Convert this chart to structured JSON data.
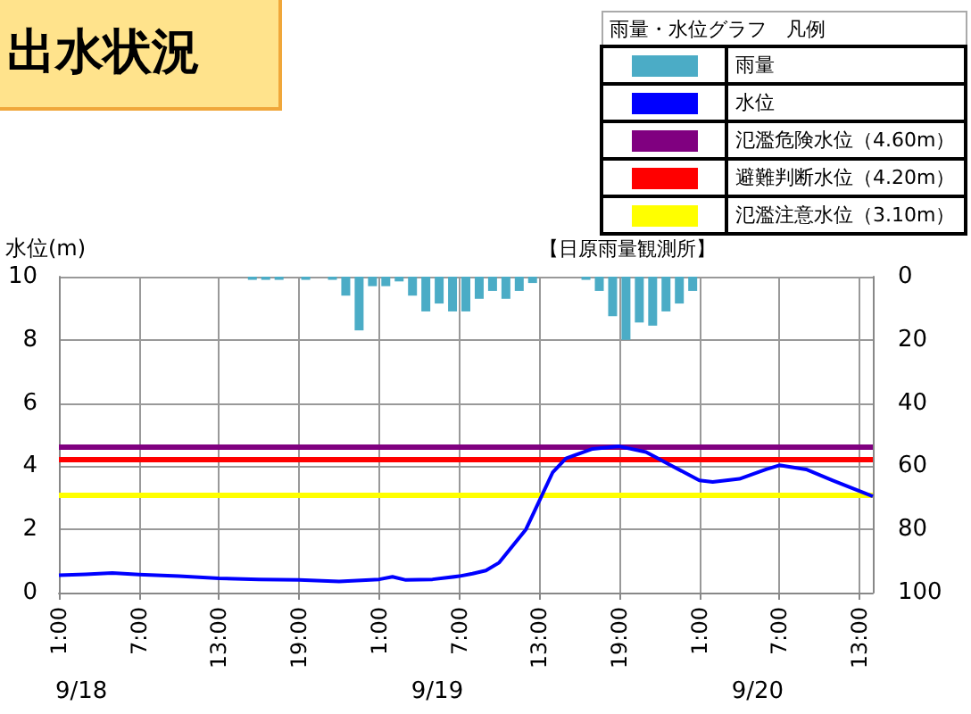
{
  "chart_data": {
    "type": "line",
    "title": "出水状況",
    "ylabel": "水位(m)",
    "legend_title": "雨量・水位グラフ　凡例",
    "annotations": [
      "【日原雨量観測所】",
      "9/18",
      "9/19",
      "9/20"
    ],
    "xlim": [
      "--09-18T01:00",
      "--09-20T14:00"
    ],
    "xticks": [
      {
        "value": "--09-18T01:00",
        "label": "1:00"
      },
      {
        "value": "--09-18T07:00",
        "label": "7:00"
      },
      {
        "value": "--09-18T13:00",
        "label": "13:00"
      },
      {
        "value": "--09-18T19:00",
        "label": "19:00"
      },
      {
        "value": "--09-19T01:00",
        "label": "1:00"
      },
      {
        "value": "--09-19T07:00",
        "label": "7:00"
      },
      {
        "value": "--09-19T13:00",
        "label": "13:00"
      },
      {
        "value": "--09-19T19:00",
        "label": "19:00"
      },
      {
        "value": "--09-20T01:00",
        "label": "1:00"
      },
      {
        "value": "--09-20T07:00",
        "label": "7:00"
      },
      {
        "value": "--09-20T13:00",
        "label": "13:00"
      }
    ],
    "ylim": [
      0,
      10
    ],
    "yticks": [
      0,
      2,
      4,
      6,
      8,
      10
    ],
    "y2lim": [
      100,
      0
    ],
    "y2ticks": [
      0,
      20,
      40,
      60,
      80,
      100
    ],
    "series": [
      {
        "name": "雨量",
        "type": "bar",
        "axis": "y2",
        "color": "#4bacc6",
        "x": [
          "--09-18T15:30",
          "--09-18T16:30",
          "--09-18T17:30",
          "--09-18T19:30",
          "--09-18T21:30",
          "--09-18T22:30",
          "--09-18T23:30",
          "--09-19T00:30",
          "--09-19T01:30",
          "--09-19T02:30",
          "--09-19T03:30",
          "--09-19T04:30",
          "--09-19T05:30",
          "--09-19T06:30",
          "--09-19T07:30",
          "--09-19T08:30",
          "--09-19T09:30",
          "--09-19T10:30",
          "--09-19T11:30",
          "--09-19T12:30",
          "--09-19T16:30",
          "--09-19T17:30",
          "--09-19T18:30",
          "--09-19T19:30",
          "--09-19T20:30",
          "--09-19T21:30",
          "--09-19T22:30",
          "--09-19T23:30",
          "--09-20T00:30"
        ],
        "values": [
          1,
          1,
          1,
          1,
          1,
          6,
          17,
          3,
          3,
          1.5,
          6,
          11,
          8.5,
          11,
          11,
          7,
          4.5,
          7,
          4.5,
          2,
          1,
          4.5,
          12.5,
          20,
          14.5,
          15.5,
          11,
          8.5,
          4.5
        ]
      },
      {
        "name": "水位",
        "color": "#0000ff",
        "x": [
          "--09-18T01:00",
          "--09-18T03:00",
          "--09-18T05:00",
          "--09-18T07:00",
          "--09-18T10:00",
          "--09-18T13:00",
          "--09-18T16:00",
          "--09-18T19:00",
          "--09-18T22:00",
          "--09-19T01:00",
          "--09-19T02:00",
          "--09-19T03:00",
          "--09-19T05:00",
          "--09-19T07:00",
          "--09-19T08:00",
          "--09-19T09:00",
          "--09-19T10:00",
          "--09-19T12:00",
          "--09-19T13:00",
          "--09-19T14:00",
          "--09-19T15:00",
          "--09-19T17:00",
          "--09-19T19:00",
          "--09-19T21:00",
          "--09-19T23:00",
          "--09-20T01:00",
          "--09-20T02:00",
          "--09-20T04:00",
          "--09-20T06:00",
          "--09-20T07:00",
          "--09-20T09:00",
          "--09-20T11:00",
          "--09-20T14:00"
        ],
        "values": [
          0.55,
          0.58,
          0.62,
          0.57,
          0.52,
          0.45,
          0.42,
          0.4,
          0.35,
          0.42,
          0.5,
          0.4,
          0.42,
          0.52,
          0.6,
          0.7,
          0.95,
          2.0,
          2.9,
          3.8,
          4.25,
          4.55,
          4.63,
          4.45,
          4.0,
          3.55,
          3.5,
          3.6,
          3.9,
          4.03,
          3.9,
          3.55,
          3.05
        ]
      }
    ],
    "ref_lines": [
      {
        "axis": "y",
        "value": 4.6,
        "label": "氾濫危険水位（4.60m）",
        "color": "#800080"
      },
      {
        "axis": "y",
        "value": 4.2,
        "label": "避難判断水位（4.20m）",
        "color": "#ff0000"
      },
      {
        "axis": "y",
        "value": 3.1,
        "label": "氾濫注意水位（3.10m）",
        "color": "#ffff00"
      }
    ],
    "grid": true,
    "legend": "top right",
    "marker": "none",
    "line_style": "solid"
  }
}
